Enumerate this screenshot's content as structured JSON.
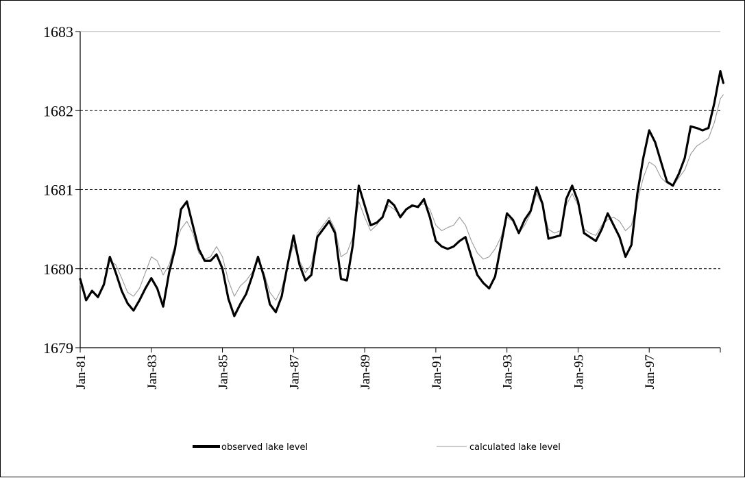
{
  "chart_data": {
    "type": "line",
    "title": "",
    "xlabel": "",
    "ylabel": "",
    "ylim": [
      1679,
      1683
    ],
    "yticks": [
      "1679",
      "1680",
      "1681",
      "1682",
      "1683"
    ],
    "xlim": [
      "1981-01",
      "1999-01"
    ],
    "xtick_labels": [
      "Jan-81",
      "Jan-83",
      "Jan-85",
      "Jan-87",
      "Jan-89",
      "Jan-91",
      "Jan-93",
      "Jan-95",
      "Jan-97"
    ],
    "grid": "horizontal dashed",
    "legend_position": "bottom",
    "series": [
      {
        "name": "observed lake level",
        "color": "#000000",
        "style": "thick",
        "points": [
          [
            "1981-01",
            1679.87
          ],
          [
            "1981-03",
            1679.6
          ],
          [
            "1981-05",
            1679.72
          ],
          [
            "1981-07",
            1679.64
          ],
          [
            "1981-09",
            1679.8
          ],
          [
            "1981-11",
            1680.15
          ],
          [
            "1982-01",
            1679.95
          ],
          [
            "1982-03",
            1679.72
          ],
          [
            "1982-05",
            1679.56
          ],
          [
            "1982-07",
            1679.47
          ],
          [
            "1982-09",
            1679.6
          ],
          [
            "1982-11",
            1679.75
          ],
          [
            "1983-01",
            1679.88
          ],
          [
            "1983-03",
            1679.75
          ],
          [
            "1983-05",
            1679.52
          ],
          [
            "1983-07",
            1679.95
          ],
          [
            "1983-09",
            1680.25
          ],
          [
            "1983-11",
            1680.75
          ],
          [
            "1984-01",
            1680.85
          ],
          [
            "1984-03",
            1680.55
          ],
          [
            "1984-05",
            1680.25
          ],
          [
            "1984-07",
            1680.1
          ],
          [
            "1984-09",
            1680.1
          ],
          [
            "1984-11",
            1680.18
          ],
          [
            "1985-01",
            1680.0
          ],
          [
            "1985-03",
            1679.62
          ],
          [
            "1985-05",
            1679.4
          ],
          [
            "1985-07",
            1679.55
          ],
          [
            "1985-09",
            1679.68
          ],
          [
            "1985-11",
            1679.9
          ],
          [
            "1986-01",
            1680.15
          ],
          [
            "1986-03",
            1679.9
          ],
          [
            "1986-05",
            1679.55
          ],
          [
            "1986-07",
            1679.45
          ],
          [
            "1986-09",
            1679.65
          ],
          [
            "1986-11",
            1680.05
          ],
          [
            "1987-01",
            1680.42
          ],
          [
            "1987-03",
            1680.05
          ],
          [
            "1987-05",
            1679.85
          ],
          [
            "1987-07",
            1679.92
          ],
          [
            "1987-09",
            1680.4
          ],
          [
            "1987-11",
            1680.5
          ],
          [
            "1988-01",
            1680.6
          ],
          [
            "1988-03",
            1680.45
          ],
          [
            "1988-05",
            1679.87
          ],
          [
            "1988-07",
            1679.85
          ],
          [
            "1988-09",
            1680.3
          ],
          [
            "1988-11",
            1681.05
          ],
          [
            "1989-01",
            1680.8
          ],
          [
            "1989-03",
            1680.55
          ],
          [
            "1989-05",
            1680.58
          ],
          [
            "1989-07",
            1680.65
          ],
          [
            "1989-09",
            1680.87
          ],
          [
            "1989-11",
            1680.8
          ],
          [
            "1990-01",
            1680.65
          ],
          [
            "1990-03",
            1680.75
          ],
          [
            "1990-05",
            1680.8
          ],
          [
            "1990-07",
            1680.78
          ],
          [
            "1990-09",
            1680.88
          ],
          [
            "1990-11",
            1680.65
          ],
          [
            "1991-01",
            1680.35
          ],
          [
            "1991-03",
            1680.28
          ],
          [
            "1991-05",
            1680.25
          ],
          [
            "1991-07",
            1680.28
          ],
          [
            "1991-09",
            1680.35
          ],
          [
            "1991-11",
            1680.4
          ],
          [
            "1992-01",
            1680.15
          ],
          [
            "1992-03",
            1679.92
          ],
          [
            "1992-05",
            1679.82
          ],
          [
            "1992-07",
            1679.75
          ],
          [
            "1992-09",
            1679.9
          ],
          [
            "1992-11",
            1680.3
          ],
          [
            "1993-01",
            1680.7
          ],
          [
            "1993-03",
            1680.62
          ],
          [
            "1993-05",
            1680.45
          ],
          [
            "1993-07",
            1680.62
          ],
          [
            "1993-09",
            1680.73
          ],
          [
            "1993-11",
            1681.03
          ],
          [
            "1994-01",
            1680.82
          ],
          [
            "1994-03",
            1680.38
          ],
          [
            "1994-05",
            1680.4
          ],
          [
            "1994-07",
            1680.42
          ],
          [
            "1994-09",
            1680.88
          ],
          [
            "1994-11",
            1681.05
          ],
          [
            "1995-01",
            1680.85
          ],
          [
            "1995-03",
            1680.45
          ],
          [
            "1995-05",
            1680.4
          ],
          [
            "1995-07",
            1680.35
          ],
          [
            "1995-09",
            1680.5
          ],
          [
            "1995-11",
            1680.7
          ],
          [
            "1996-01",
            1680.55
          ],
          [
            "1996-03",
            1680.4
          ],
          [
            "1996-05",
            1680.15
          ],
          [
            "1996-07",
            1680.3
          ],
          [
            "1996-09",
            1680.95
          ],
          [
            "1996-11",
            1681.4
          ],
          [
            "1997-01",
            1681.75
          ],
          [
            "1997-03",
            1681.6
          ],
          [
            "1997-05",
            1681.35
          ],
          [
            "1997-07",
            1681.1
          ],
          [
            "1997-09",
            1681.05
          ],
          [
            "1997-11",
            1681.2
          ],
          [
            "1998-01",
            1681.4
          ],
          [
            "1998-03",
            1681.8
          ],
          [
            "1998-05",
            1681.78
          ],
          [
            "1998-07",
            1681.75
          ],
          [
            "1998-09",
            1681.78
          ],
          [
            "1998-11",
            1682.1
          ],
          [
            "1999-01",
            1682.5
          ],
          [
            "1999-02",
            1682.35
          ]
        ]
      },
      {
        "name": "calculated lake level",
        "color": "#999999",
        "style": "thin",
        "points": [
          [
            "1981-01",
            1679.8
          ],
          [
            "1981-03",
            1679.62
          ],
          [
            "1981-05",
            1679.7
          ],
          [
            "1981-07",
            1679.66
          ],
          [
            "1981-09",
            1679.82
          ],
          [
            "1981-11",
            1680.1
          ],
          [
            "1982-01",
            1680.05
          ],
          [
            "1982-03",
            1679.88
          ],
          [
            "1982-05",
            1679.7
          ],
          [
            "1982-07",
            1679.65
          ],
          [
            "1982-09",
            1679.75
          ],
          [
            "1982-11",
            1679.95
          ],
          [
            "1983-01",
            1680.15
          ],
          [
            "1983-03",
            1680.1
          ],
          [
            "1983-05",
            1679.92
          ],
          [
            "1983-07",
            1680.05
          ],
          [
            "1983-09",
            1680.3
          ],
          [
            "1983-11",
            1680.5
          ],
          [
            "1984-01",
            1680.6
          ],
          [
            "1984-03",
            1680.45
          ],
          [
            "1984-05",
            1680.2
          ],
          [
            "1984-07",
            1680.12
          ],
          [
            "1984-09",
            1680.15
          ],
          [
            "1984-11",
            1680.28
          ],
          [
            "1985-01",
            1680.15
          ],
          [
            "1985-03",
            1679.85
          ],
          [
            "1985-05",
            1679.65
          ],
          [
            "1985-07",
            1679.78
          ],
          [
            "1985-09",
            1679.85
          ],
          [
            "1985-11",
            1679.95
          ],
          [
            "1986-01",
            1680.1
          ],
          [
            "1986-03",
            1679.95
          ],
          [
            "1986-05",
            1679.7
          ],
          [
            "1986-07",
            1679.6
          ],
          [
            "1986-09",
            1679.75
          ],
          [
            "1986-11",
            1680.05
          ],
          [
            "1987-01",
            1680.3
          ],
          [
            "1987-03",
            1680.1
          ],
          [
            "1987-05",
            1679.95
          ],
          [
            "1987-07",
            1680.05
          ],
          [
            "1987-09",
            1680.45
          ],
          [
            "1987-11",
            1680.55
          ],
          [
            "1988-01",
            1680.65
          ],
          [
            "1988-03",
            1680.5
          ],
          [
            "1988-05",
            1680.15
          ],
          [
            "1988-07",
            1680.2
          ],
          [
            "1988-09",
            1680.4
          ],
          [
            "1988-11",
            1680.85
          ],
          [
            "1989-01",
            1680.65
          ],
          [
            "1989-03",
            1680.48
          ],
          [
            "1989-05",
            1680.55
          ],
          [
            "1989-07",
            1680.65
          ],
          [
            "1989-09",
            1680.8
          ],
          [
            "1989-11",
            1680.75
          ],
          [
            "1990-01",
            1680.68
          ],
          [
            "1990-03",
            1680.75
          ],
          [
            "1990-05",
            1680.78
          ],
          [
            "1990-07",
            1680.8
          ],
          [
            "1990-09",
            1680.82
          ],
          [
            "1990-11",
            1680.75
          ],
          [
            "1991-01",
            1680.55
          ],
          [
            "1991-03",
            1680.48
          ],
          [
            "1991-05",
            1680.52
          ],
          [
            "1991-07",
            1680.55
          ],
          [
            "1991-09",
            1680.65
          ],
          [
            "1991-11",
            1680.55
          ],
          [
            "1992-01",
            1680.35
          ],
          [
            "1992-03",
            1680.2
          ],
          [
            "1992-05",
            1680.12
          ],
          [
            "1992-07",
            1680.15
          ],
          [
            "1992-09",
            1680.25
          ],
          [
            "1992-11",
            1680.4
          ],
          [
            "1993-01",
            1680.65
          ],
          [
            "1993-03",
            1680.6
          ],
          [
            "1993-05",
            1680.45
          ],
          [
            "1993-07",
            1680.55
          ],
          [
            "1993-09",
            1680.7
          ],
          [
            "1993-11",
            1680.95
          ],
          [
            "1994-01",
            1680.8
          ],
          [
            "1994-03",
            1680.5
          ],
          [
            "1994-05",
            1680.45
          ],
          [
            "1994-07",
            1680.48
          ],
          [
            "1994-09",
            1680.8
          ],
          [
            "1994-11",
            1680.95
          ],
          [
            "1995-01",
            1680.8
          ],
          [
            "1995-03",
            1680.5
          ],
          [
            "1995-05",
            1680.45
          ],
          [
            "1995-07",
            1680.42
          ],
          [
            "1995-09",
            1680.55
          ],
          [
            "1995-11",
            1680.62
          ],
          [
            "1996-01",
            1680.65
          ],
          [
            "1996-03",
            1680.6
          ],
          [
            "1996-05",
            1680.48
          ],
          [
            "1996-07",
            1680.55
          ],
          [
            "1996-09",
            1680.85
          ],
          [
            "1996-11",
            1681.15
          ],
          [
            "1997-01",
            1681.35
          ],
          [
            "1997-03",
            1681.3
          ],
          [
            "1997-05",
            1681.15
          ],
          [
            "1997-07",
            1681.08
          ],
          [
            "1997-09",
            1681.05
          ],
          [
            "1997-11",
            1681.15
          ],
          [
            "1998-01",
            1681.25
          ],
          [
            "1998-03",
            1681.45
          ],
          [
            "1998-05",
            1681.55
          ],
          [
            "1998-07",
            1681.6
          ],
          [
            "1998-09",
            1681.65
          ],
          [
            "1998-11",
            1681.85
          ],
          [
            "1999-01",
            1682.15
          ],
          [
            "1999-02",
            1682.2
          ]
        ]
      }
    ]
  }
}
